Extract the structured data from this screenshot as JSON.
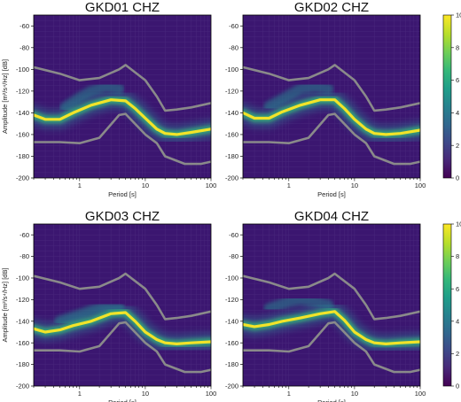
{
  "chart_data": [
    {
      "type": "heatmap",
      "title": "GKD01 CHZ",
      "xlabel": "Period [s]",
      "ylabel": "Amplitude [m²/s⁴/Hz] [dB]",
      "xscale": "log",
      "xlim": [
        0.2,
        100
      ],
      "ylim": [
        -200,
        -50
      ],
      "xticks": [
        "1",
        "10",
        "100"
      ],
      "yticks": [
        "-60",
        "-80",
        "-100",
        "-120",
        "-140",
        "-160",
        "-180",
        "-200"
      ],
      "main_curve": [
        [
          0.2,
          -142
        ],
        [
          0.3,
          -146
        ],
        [
          0.5,
          -146
        ],
        [
          0.8,
          -140
        ],
        [
          1.5,
          -133
        ],
        [
          3,
          -128
        ],
        [
          5,
          -129
        ],
        [
          7,
          -136
        ],
        [
          10,
          -145
        ],
        [
          15,
          -155
        ],
        [
          20,
          -159
        ],
        [
          30,
          -160
        ],
        [
          50,
          -158
        ],
        [
          100,
          -155
        ]
      ],
      "secondary_branch": [
        [
          0.6,
          -135
        ],
        [
          1,
          -126
        ],
        [
          1.5,
          -120
        ],
        [
          2.5,
          -116
        ],
        [
          4,
          -118
        ]
      ],
      "noise_model_high": [
        [
          0.2,
          -98
        ],
        [
          0.5,
          -104
        ],
        [
          1,
          -110
        ],
        [
          2,
          -108
        ],
        [
          4,
          -100
        ],
        [
          5,
          -96
        ],
        [
          10,
          -110
        ],
        [
          15,
          -125
        ],
        [
          20,
          -138
        ],
        [
          30,
          -137
        ],
        [
          50,
          -135
        ],
        [
          100,
          -131
        ]
      ],
      "noise_model_low": [
        [
          0.2,
          -167
        ],
        [
          0.5,
          -167
        ],
        [
          1,
          -168
        ],
        [
          2,
          -163
        ],
        [
          4,
          -142
        ],
        [
          5,
          -141
        ],
        [
          10,
          -160
        ],
        [
          15,
          -168
        ],
        [
          20,
          -180
        ],
        [
          40,
          -187
        ],
        [
          70,
          -187
        ],
        [
          100,
          -185
        ]
      ]
    },
    {
      "type": "heatmap",
      "title": "GKD02 CHZ",
      "xlabel": "Period [s]",
      "ylabel": "",
      "xscale": "log",
      "xlim": [
        0.2,
        100
      ],
      "ylim": [
        -200,
        -50
      ],
      "xticks": [
        "1",
        "10",
        "100"
      ],
      "yticks": [
        "-60",
        "-80",
        "-100",
        "-120",
        "-140",
        "-160",
        "-180",
        "-200"
      ],
      "main_curve": [
        [
          0.2,
          -140
        ],
        [
          0.3,
          -145
        ],
        [
          0.5,
          -145
        ],
        [
          0.8,
          -139
        ],
        [
          1.5,
          -133
        ],
        [
          3,
          -128
        ],
        [
          5,
          -128
        ],
        [
          7,
          -136
        ],
        [
          10,
          -146
        ],
        [
          15,
          -155
        ],
        [
          20,
          -159
        ],
        [
          30,
          -160
        ],
        [
          50,
          -159
        ],
        [
          100,
          -156
        ]
      ],
      "secondary_branch": [
        [
          0.5,
          -134
        ],
        [
          1,
          -124
        ],
        [
          1.5,
          -118
        ],
        [
          2.5,
          -116
        ],
        [
          4,
          -118
        ]
      ],
      "noise_model_high": [
        [
          0.2,
          -98
        ],
        [
          0.5,
          -104
        ],
        [
          1,
          -110
        ],
        [
          2,
          -108
        ],
        [
          4,
          -100
        ],
        [
          5,
          -96
        ],
        [
          10,
          -110
        ],
        [
          15,
          -125
        ],
        [
          20,
          -138
        ],
        [
          30,
          -137
        ],
        [
          50,
          -135
        ],
        [
          100,
          -131
        ]
      ],
      "noise_model_low": [
        [
          0.2,
          -167
        ],
        [
          0.5,
          -167
        ],
        [
          1,
          -168
        ],
        [
          2,
          -163
        ],
        [
          4,
          -142
        ],
        [
          5,
          -141
        ],
        [
          10,
          -160
        ],
        [
          15,
          -168
        ],
        [
          20,
          -180
        ],
        [
          40,
          -187
        ],
        [
          70,
          -187
        ],
        [
          100,
          -185
        ]
      ]
    },
    {
      "type": "heatmap",
      "title": "GKD03 CHZ",
      "xlabel": "Period [s]",
      "ylabel": "Amplitude [m²/s⁴/Hz] [dB]",
      "xscale": "log",
      "xlim": [
        0.2,
        100
      ],
      "ylim": [
        -200,
        -50
      ],
      "xticks": [
        "1",
        "10",
        "100"
      ],
      "yticks": [
        "-60",
        "-80",
        "-100",
        "-120",
        "-140",
        "-160",
        "-180",
        "-200"
      ],
      "main_curve": [
        [
          0.2,
          -147
        ],
        [
          0.3,
          -150
        ],
        [
          0.5,
          -148
        ],
        [
          0.8,
          -144
        ],
        [
          1.5,
          -140
        ],
        [
          3,
          -133
        ],
        [
          5,
          -132
        ],
        [
          7,
          -140
        ],
        [
          10,
          -150
        ],
        [
          15,
          -157
        ],
        [
          20,
          -160
        ],
        [
          30,
          -161
        ],
        [
          50,
          -160
        ],
        [
          100,
          -159
        ]
      ],
      "secondary_branch": [
        [
          0.5,
          -140
        ],
        [
          1,
          -134
        ],
        [
          1.5,
          -130
        ],
        [
          2.5,
          -126
        ],
        [
          4,
          -126
        ]
      ],
      "noise_model_high": [
        [
          0.2,
          -98
        ],
        [
          0.5,
          -104
        ],
        [
          1,
          -110
        ],
        [
          2,
          -108
        ],
        [
          4,
          -100
        ],
        [
          5,
          -96
        ],
        [
          10,
          -110
        ],
        [
          15,
          -125
        ],
        [
          20,
          -138
        ],
        [
          30,
          -137
        ],
        [
          50,
          -135
        ],
        [
          100,
          -131
        ]
      ],
      "noise_model_low": [
        [
          0.2,
          -167
        ],
        [
          0.5,
          -167
        ],
        [
          1,
          -168
        ],
        [
          2,
          -163
        ],
        [
          4,
          -142
        ],
        [
          5,
          -141
        ],
        [
          10,
          -160
        ],
        [
          15,
          -168
        ],
        [
          20,
          -180
        ],
        [
          40,
          -187
        ],
        [
          70,
          -187
        ],
        [
          100,
          -185
        ]
      ]
    },
    {
      "type": "heatmap",
      "title": "GKD04 CHZ",
      "xlabel": "Period [s]",
      "ylabel": "",
      "xscale": "log",
      "xlim": [
        0.2,
        100
      ],
      "ylim": [
        -200,
        -50
      ],
      "xticks": [
        "1",
        "10",
        "100"
      ],
      "yticks": [
        "-60",
        "-80",
        "-100",
        "-120",
        "-140",
        "-160",
        "-180",
        "-200"
      ],
      "main_curve": [
        [
          0.2,
          -143
        ],
        [
          0.3,
          -145
        ],
        [
          0.5,
          -143
        ],
        [
          0.8,
          -140
        ],
        [
          1.5,
          -137
        ],
        [
          3,
          -133
        ],
        [
          5,
          -131
        ],
        [
          7,
          -139
        ],
        [
          10,
          -150
        ],
        [
          15,
          -157
        ],
        [
          20,
          -160
        ],
        [
          30,
          -161
        ],
        [
          50,
          -160
        ],
        [
          100,
          -159
        ]
      ],
      "secondary_branch": [
        [
          0.5,
          -128
        ],
        [
          1,
          -122
        ],
        [
          1.5,
          -120
        ],
        [
          2.5,
          -122
        ],
        [
          4,
          -125
        ]
      ],
      "noise_model_high": [
        [
          0.2,
          -98
        ],
        [
          0.5,
          -104
        ],
        [
          1,
          -110
        ],
        [
          2,
          -108
        ],
        [
          4,
          -100
        ],
        [
          5,
          -96
        ],
        [
          10,
          -110
        ],
        [
          15,
          -125
        ],
        [
          20,
          -138
        ],
        [
          30,
          -137
        ],
        [
          50,
          -135
        ],
        [
          100,
          -131
        ]
      ],
      "noise_model_low": [
        [
          0.2,
          -167
        ],
        [
          0.5,
          -167
        ],
        [
          1,
          -168
        ],
        [
          2,
          -163
        ],
        [
          4,
          -142
        ],
        [
          5,
          -141
        ],
        [
          10,
          -160
        ],
        [
          15,
          -168
        ],
        [
          20,
          -180
        ],
        [
          40,
          -187
        ],
        [
          70,
          -187
        ],
        [
          100,
          -185
        ]
      ]
    }
  ],
  "colorbars": [
    {
      "label": "[%]",
      "range": [
        0,
        10
      ],
      "ticks": [
        "0",
        "2",
        "4",
        "6",
        "8",
        "10"
      ]
    },
    {
      "label": "[%]",
      "range": [
        0,
        10
      ],
      "ticks": [
        "0",
        "2",
        "4",
        "6",
        "8",
        "10"
      ]
    }
  ],
  "colors": {
    "background": "#3b1670",
    "grid": "#5a3d8c",
    "noise_model": "#8a8a8a",
    "viridis": [
      "#440154",
      "#482878",
      "#3e4989",
      "#31688e",
      "#26828e",
      "#1f9e89",
      "#35b779",
      "#6ece58",
      "#b5de2b",
      "#fde725"
    ]
  }
}
